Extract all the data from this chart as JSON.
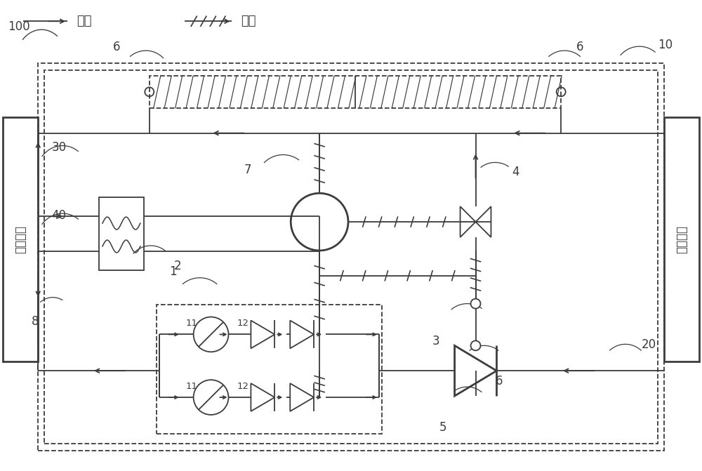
{
  "bg_color": "#ffffff",
  "lc": "#3c3c3c",
  "lw": 1.3,
  "lw2": 2.0,
  "legend_pipe": "管道",
  "legend_circuit": "电路",
  "label_100": "100",
  "label_10": "10",
  "label_20": "20",
  "label_30": "30",
  "label_40": "40",
  "label_1": "1",
  "label_2": "2",
  "label_3": "3",
  "label_4": "4",
  "label_5": "5",
  "label_6": "6",
  "label_7": "7",
  "label_8": "8",
  "label_11": "11",
  "label_12": "12",
  "left_label": "冷却回路",
  "right_label": "负载回路",
  "fig_w": 10.0,
  "fig_h": 6.71,
  "dpi": 100
}
